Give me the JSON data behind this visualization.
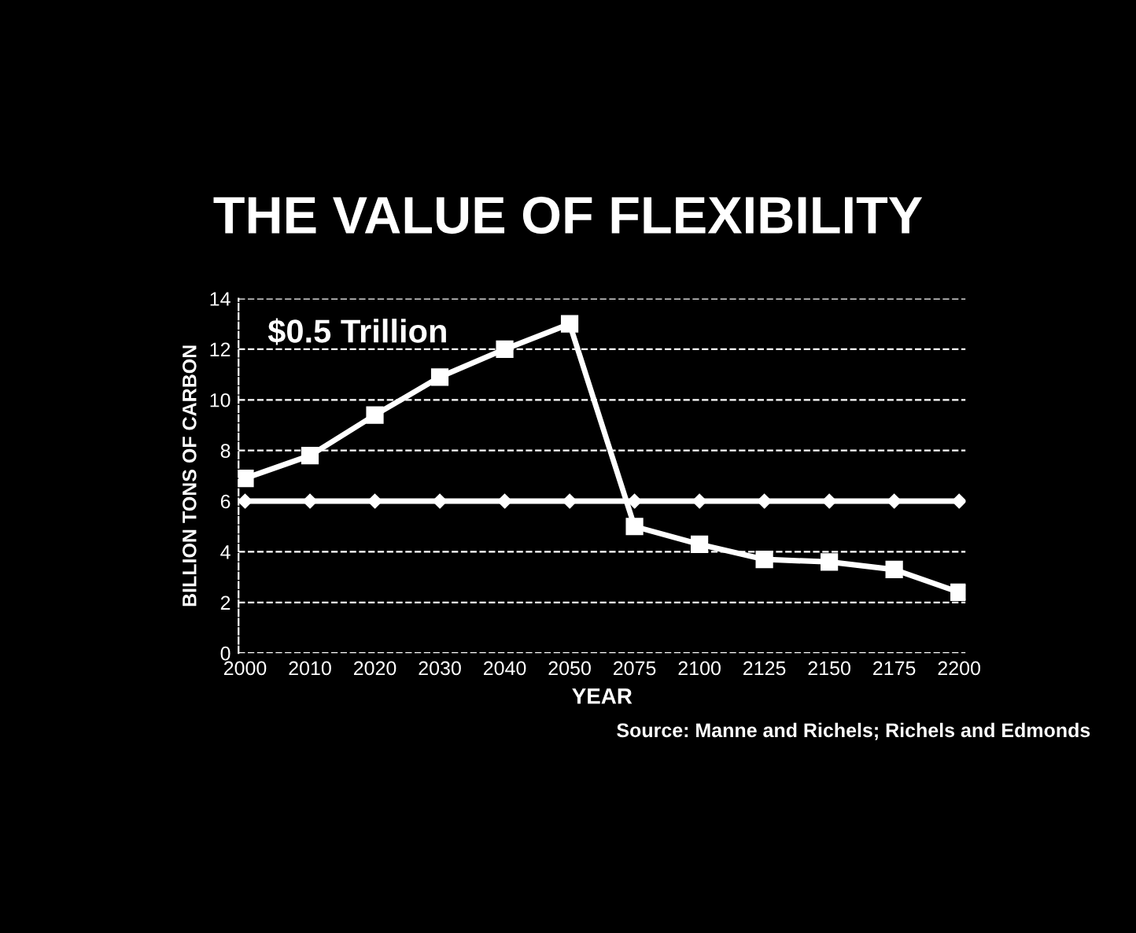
{
  "chart_data": {
    "type": "line",
    "title": "THE VALUE OF FLEXIBILITY",
    "xlabel": "YEAR",
    "ylabel": "BILLION TONS OF CARBON",
    "categories": [
      "2000",
      "2010",
      "2020",
      "2030",
      "2040",
      "2050",
      "2075",
      "2100",
      "2125",
      "2150",
      "2175",
      "2200"
    ],
    "series": [
      {
        "color": "#ffffff",
        "marker": "square",
        "values": [
          6.9,
          7.8,
          9.4,
          10.9,
          12.0,
          13.0,
          5.0,
          4.3,
          3.7,
          3.6,
          3.3,
          2.4
        ]
      },
      {
        "color": "#ffffff",
        "marker": "diamond",
        "values": [
          6.0,
          6.0,
          6.0,
          6.0,
          6.0,
          6.0,
          6.0,
          6.0,
          6.0,
          6.0,
          6.0,
          6.0
        ]
      }
    ],
    "ylim": [
      0,
      14
    ],
    "yticks": [
      0,
      2,
      4,
      6,
      8,
      10,
      12,
      14
    ],
    "grid": "y",
    "line_style": "solid",
    "annotations": [
      "$0.5 Trillion",
      "Source: Manne and Richels; Richels and Edmonds"
    ]
  }
}
